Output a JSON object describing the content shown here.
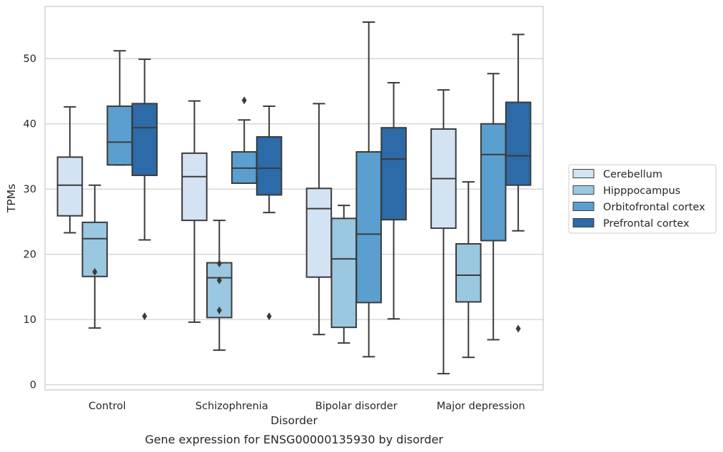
{
  "chart_data": {
    "type": "boxplot",
    "caption": "Gene expression for ENSG00000135930 by disorder",
    "xlabel": "Disorder",
    "ylabel": "TPMs",
    "ylim": [
      -0.8,
      58
    ],
    "yticks": [
      0,
      10,
      20,
      30,
      40,
      50
    ],
    "grid": "horizontal",
    "legend_position": "right",
    "categories": [
      "Control",
      "Schizophrenia",
      "Bipolar disorder",
      "Major depression"
    ],
    "series": [
      {
        "name": "Cerebellum",
        "color": "#d3e3f3",
        "boxes": [
          {
            "whislo": 23.3,
            "q1": 25.9,
            "med": 30.6,
            "q3": 34.9,
            "whishi": 42.6,
            "fliers": []
          },
          {
            "whislo": 9.6,
            "q1": 25.2,
            "med": 31.9,
            "q3": 35.5,
            "whishi": 43.5,
            "fliers": []
          },
          {
            "whislo": 7.7,
            "q1": 16.5,
            "med": 27.0,
            "q3": 30.1,
            "whishi": 43.1,
            "fliers": []
          },
          {
            "whislo": 1.7,
            "q1": 24.0,
            "med": 31.6,
            "q3": 39.2,
            "whishi": 45.2,
            "fliers": []
          }
        ]
      },
      {
        "name": "Hipppocampus",
        "color": "#9ac8e0",
        "boxes": [
          {
            "whislo": 8.7,
            "q1": 16.6,
            "med": 22.4,
            "q3": 24.9,
            "whishi": 30.6,
            "fliers": [
              17.3
            ]
          },
          {
            "whislo": 5.3,
            "q1": 10.3,
            "med": 16.4,
            "q3": 18.7,
            "whishi": 25.2,
            "fliers": [
              18.6,
              16.0,
              11.4
            ]
          },
          {
            "whislo": 6.4,
            "q1": 8.8,
            "med": 19.3,
            "q3": 25.5,
            "whishi": 27.5,
            "fliers": []
          },
          {
            "whislo": 4.2,
            "q1": 12.7,
            "med": 16.8,
            "q3": 21.6,
            "whishi": 31.1,
            "fliers": []
          }
        ]
      },
      {
        "name": "Orbitofrontal cortex",
        "color": "#5a9fcf",
        "boxes": [
          {
            "whislo": 33.7,
            "q1": 33.7,
            "med": 37.2,
            "q3": 42.7,
            "whishi": 51.2,
            "fliers": []
          },
          {
            "whislo": 30.9,
            "q1": 30.9,
            "med": 33.2,
            "q3": 35.7,
            "whishi": 40.6,
            "fliers": [
              43.6
            ]
          },
          {
            "whislo": 4.3,
            "q1": 12.6,
            "med": 23.1,
            "q3": 35.7,
            "whishi": 55.6,
            "fliers": []
          },
          {
            "whislo": 6.9,
            "q1": 22.1,
            "med": 35.3,
            "q3": 40.0,
            "whishi": 47.7,
            "fliers": []
          }
        ]
      },
      {
        "name": "Prefrontal cortex",
        "color": "#2c6aa8",
        "boxes": [
          {
            "whislo": 22.2,
            "q1": 32.1,
            "med": 39.4,
            "q3": 43.1,
            "whishi": 49.9,
            "fliers": [
              10.5
            ]
          },
          {
            "whislo": 26.4,
            "q1": 29.1,
            "med": 33.2,
            "q3": 38.0,
            "whishi": 42.7,
            "fliers": [
              10.5
            ]
          },
          {
            "whislo": 10.1,
            "q1": 25.3,
            "med": 34.6,
            "q3": 39.4,
            "whishi": 46.3,
            "fliers": []
          },
          {
            "whislo": 23.6,
            "q1": 30.6,
            "med": 35.1,
            "q3": 43.3,
            "whishi": 53.7,
            "fliers": [
              8.6
            ]
          }
        ]
      }
    ]
  }
}
